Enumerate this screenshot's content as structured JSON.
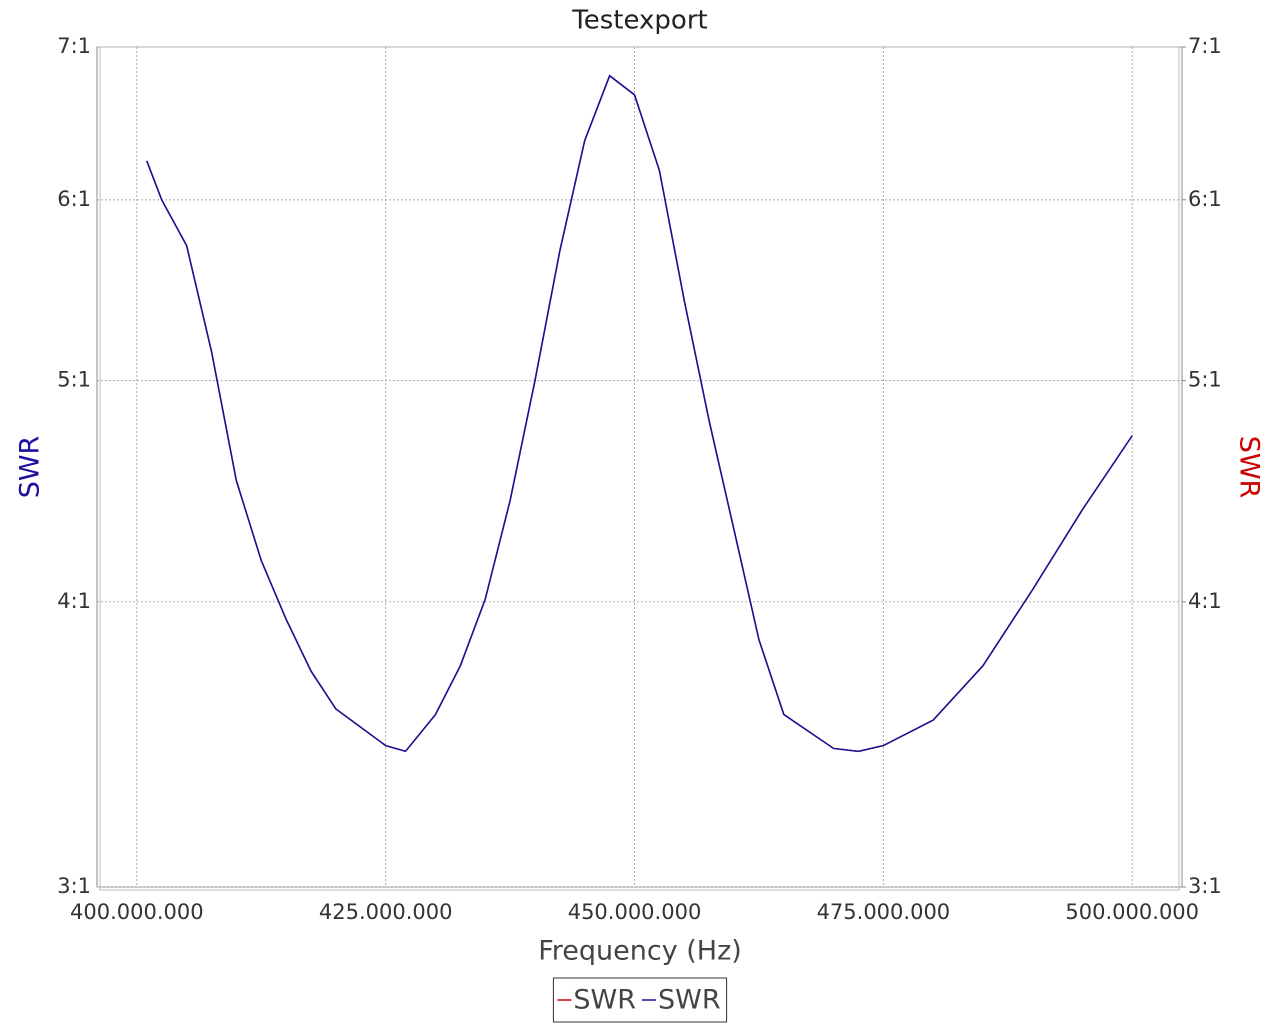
{
  "chart_data": {
    "type": "line",
    "title": "Testexport",
    "x_label": "Frequency (Hz)",
    "y_label": "SWR",
    "y2_label": "SWR",
    "y_scale": "log",
    "grid": true,
    "legend": "bottom",
    "x": [
      401000000,
      402500000,
      405000000,
      407500000,
      410000000,
      412500000,
      415000000,
      417500000,
      420000000,
      425000000,
      427000000,
      430000000,
      432500000,
      435000000,
      437500000,
      440000000,
      442500000,
      445000000,
      447500000,
      450000000,
      452500000,
      455000000,
      457500000,
      460000000,
      462500000,
      465000000,
      470000000,
      472500000,
      475000000,
      480000000,
      485000000,
      490000000,
      495000000,
      500000000
    ],
    "series": [
      {
        "name": "SWR",
        "color": "#cc0000",
        "axis": "y2",
        "values": [
          6.24,
          6.0,
          5.73,
          5.15,
          4.52,
          4.17,
          3.93,
          3.73,
          3.59,
          3.46,
          3.44,
          3.57,
          3.75,
          4.01,
          4.43,
          5.0,
          5.7,
          6.37,
          6.8,
          6.67,
          6.18,
          5.42,
          4.8,
          4.3,
          3.85,
          3.57,
          3.45,
          3.44,
          3.46,
          3.55,
          3.75,
          4.05,
          4.39,
          4.73
        ]
      },
      {
        "name": "SWR",
        "color": "#1a0fa0",
        "values": [
          6.24,
          6.0,
          5.73,
          5.15,
          4.52,
          4.17,
          3.93,
          3.73,
          3.59,
          3.46,
          3.44,
          3.57,
          3.75,
          4.01,
          4.43,
          5.0,
          5.7,
          6.37,
          6.8,
          6.67,
          6.18,
          5.42,
          4.8,
          4.3,
          3.85,
          3.57,
          3.45,
          3.44,
          3.46,
          3.55,
          3.75,
          4.05,
          4.39,
          4.73
        ]
      }
    ],
    "xlim": [
      396000000,
      505000000
    ],
    "ylim": [
      3,
      7
    ],
    "y2lim": [
      3,
      7
    ],
    "xticks": [
      {
        "value": 400000000,
        "label": "400.000.000"
      },
      {
        "value": 425000000,
        "label": "425.000.000"
      },
      {
        "value": 450000000,
        "label": "450.000.000"
      },
      {
        "value": 475000000,
        "label": "475.000.000"
      },
      {
        "value": 500000000,
        "label": "500.000.000"
      }
    ],
    "yticks": [
      {
        "value": 3,
        "label": "3:1"
      },
      {
        "value": 4,
        "label": "4:1"
      },
      {
        "value": 5,
        "label": "5:1"
      },
      {
        "value": 6,
        "label": "6:1"
      },
      {
        "value": 7,
        "label": "7:1"
      }
    ],
    "y2ticks": [
      {
        "value": 3,
        "label": "3:1"
      },
      {
        "value": 4,
        "label": "4:1"
      },
      {
        "value": 5,
        "label": "5:1"
      },
      {
        "value": 6,
        "label": "6:1"
      },
      {
        "value": 7,
        "label": "7:1"
      }
    ]
  }
}
